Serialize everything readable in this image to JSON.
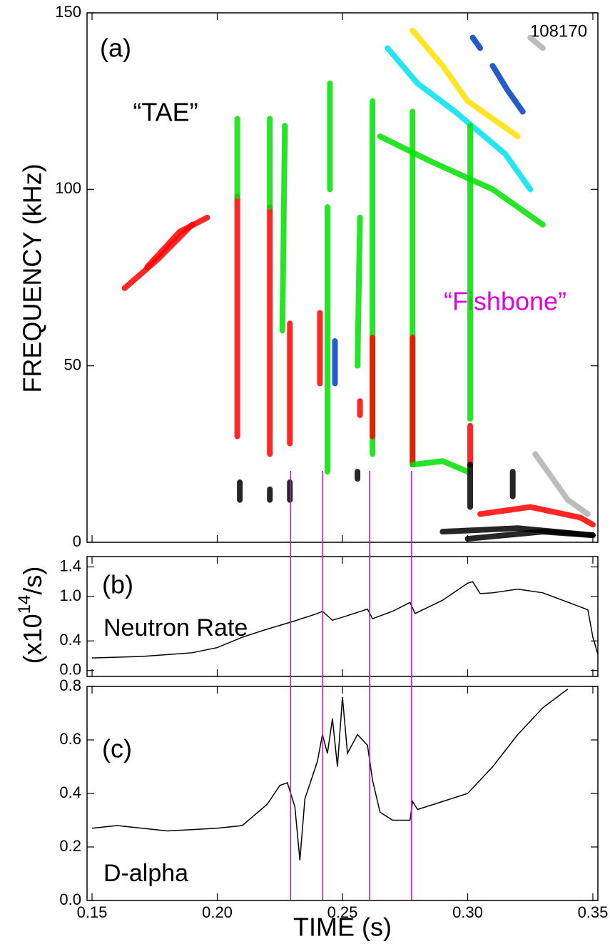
{
  "chart_data": [
    {
      "type": "contour",
      "panel_label": "(a)",
      "shot": "108170",
      "ylabel": "FREQUENCY (kHz)",
      "annotations": [
        {
          "text": "“TAE”",
          "color": "#000000"
        },
        {
          "text": "“Fishbone”",
          "color": "#e000e0"
        }
      ],
      "xlim": [
        0.148,
        0.352
      ],
      "ylim": [
        0,
        150
      ],
      "yticks": [
        0,
        50,
        100,
        150
      ],
      "vlines": {
        "color": "#e000e0",
        "x": [
          0.2293,
          0.242,
          0.2608,
          0.2776
        ]
      },
      "contours": [
        {
          "color": "#ff0000",
          "t": [
            0.163,
            0.176,
            0.19
          ],
          "f": [
            72,
            80,
            90
          ]
        },
        {
          "color": "#ff0000",
          "t": [
            0.172,
            0.185,
            0.196
          ],
          "f": [
            78,
            88,
            92
          ]
        },
        {
          "color": "#ff0000",
          "t": [
            0.208,
            0.208
          ],
          "f": [
            30,
            98
          ]
        },
        {
          "color": "#00e000",
          "t": [
            0.208,
            0.208
          ],
          "f": [
            98,
            120
          ]
        },
        {
          "color": "#000000",
          "t": [
            0.209,
            0.209
          ],
          "f": [
            12,
            17
          ]
        },
        {
          "color": "#ff0000",
          "t": [
            0.221,
            0.221
          ],
          "f": [
            25,
            95
          ]
        },
        {
          "color": "#00e000",
          "t": [
            0.221,
            0.221
          ],
          "f": [
            95,
            120
          ]
        },
        {
          "color": "#000000",
          "t": [
            0.221,
            0.221
          ],
          "f": [
            12,
            15
          ]
        },
        {
          "color": "#ff0000",
          "t": [
            0.229,
            0.229
          ],
          "f": [
            28,
            62
          ]
        },
        {
          "color": "#00e000",
          "t": [
            0.226,
            0.227
          ],
          "f": [
            60,
            118
          ]
        },
        {
          "color": "#000000",
          "t": [
            0.229,
            0.229
          ],
          "f": [
            12,
            17
          ]
        },
        {
          "color": "#ff0000",
          "t": [
            0.241,
            0.241
          ],
          "f": [
            45,
            65
          ]
        },
        {
          "color": "#00e000",
          "t": [
            0.244,
            0.244
          ],
          "f": [
            20,
            95
          ]
        },
        {
          "color": "#00e000",
          "t": [
            0.245,
            0.245
          ],
          "f": [
            100,
            130
          ]
        },
        {
          "color": "#0040c0",
          "t": [
            0.247,
            0.247
          ],
          "f": [
            45,
            57
          ]
        },
        {
          "color": "#00e000",
          "t": [
            0.256,
            0.257
          ],
          "f": [
            50,
            92
          ]
        },
        {
          "color": "#ff0000",
          "t": [
            0.257,
            0.257
          ],
          "f": [
            36,
            40
          ]
        },
        {
          "color": "#000000",
          "t": [
            0.256,
            0.256
          ],
          "f": [
            18,
            20
          ]
        },
        {
          "color": "#00e000",
          "t": [
            0.262,
            0.262
          ],
          "f": [
            25,
            125
          ]
        },
        {
          "color": "#ff0000",
          "t": [
            0.262,
            0.262
          ],
          "f": [
            30,
            58
          ]
        },
        {
          "color": "#00e000",
          "t": [
            0.278,
            0.278
          ],
          "f": [
            22,
            122
          ]
        },
        {
          "color": "#ff0000",
          "t": [
            0.278,
            0.278
          ],
          "f": [
            22,
            58
          ]
        },
        {
          "color": "#00e000",
          "t": [
            0.278,
            0.29,
            0.3
          ],
          "f": [
            22,
            23,
            20
          ]
        },
        {
          "color": "#00e000",
          "t": [
            0.265,
            0.285,
            0.31,
            0.33
          ],
          "f": [
            115,
            108,
            100,
            90
          ]
        },
        {
          "color": "#00e0f0",
          "t": [
            0.268,
            0.28,
            0.295,
            0.315,
            0.325
          ],
          "f": [
            140,
            130,
            122,
            110,
            100
          ]
        },
        {
          "color": "#ffe000",
          "t": [
            0.278,
            0.29,
            0.3,
            0.31,
            0.32
          ],
          "f": [
            145,
            135,
            125,
            120,
            115
          ]
        },
        {
          "color": "#0040c0",
          "t": [
            0.302,
            0.305
          ],
          "f": [
            143,
            140
          ]
        },
        {
          "color": "#0040c0",
          "t": [
            0.31,
            0.316,
            0.322
          ],
          "f": [
            135,
            128,
            122
          ]
        },
        {
          "color": "#b0b0b0",
          "t": [
            0.325,
            0.33
          ],
          "f": [
            143,
            140
          ]
        },
        {
          "color": "#00e000",
          "t": [
            0.301,
            0.301
          ],
          "f": [
            35,
            118
          ]
        },
        {
          "color": "#ff0000",
          "t": [
            0.301,
            0.301
          ],
          "f": [
            22,
            33
          ]
        },
        {
          "color": "#000000",
          "t": [
            0.301,
            0.301
          ],
          "f": [
            10,
            22
          ]
        },
        {
          "color": "#000000",
          "t": [
            0.29,
            0.32,
            0.35
          ],
          "f": [
            3,
            4,
            2
          ]
        },
        {
          "color": "#000000",
          "t": [
            0.3,
            0.33,
            0.35
          ],
          "f": [
            1,
            3,
            2
          ]
        },
        {
          "color": "#ff0000",
          "t": [
            0.305,
            0.325,
            0.345,
            0.35
          ],
          "f": [
            8,
            10,
            7,
            5
          ]
        },
        {
          "color": "#000000",
          "t": [
            0.318,
            0.318
          ],
          "f": [
            13,
            20
          ]
        },
        {
          "color": "#b0b0b0",
          "t": [
            0.327,
            0.34,
            0.348
          ],
          "f": [
            25,
            12,
            8
          ]
        }
      ]
    },
    {
      "type": "line",
      "panel_label": "(b)",
      "name": "Neutron Rate",
      "ylabel": [
        "(x10",
        "14",
        "/s)"
      ],
      "color": "#000000",
      "xlim": [
        0.148,
        0.352
      ],
      "ylim": [
        -0.08,
        1.54
      ],
      "yticks": [
        {
          "value": 0,
          "label": "0.0"
        },
        0.4,
        {
          "value": 1,
          "label": "1.0"
        },
        1.4
      ],
      "x": [
        0.15,
        0.17,
        0.19,
        0.2,
        0.21,
        0.22,
        0.23,
        0.24,
        0.242,
        0.246,
        0.25,
        0.26,
        0.262,
        0.27,
        0.277,
        0.279,
        0.29,
        0.3,
        0.302,
        0.305,
        0.31,
        0.32,
        0.33,
        0.345,
        0.348,
        0.35,
        0.352
      ],
      "values": [
        0.17,
        0.19,
        0.24,
        0.31,
        0.45,
        0.56,
        0.66,
        0.77,
        0.8,
        0.68,
        0.72,
        0.83,
        0.7,
        0.8,
        0.92,
        0.77,
        0.95,
        1.18,
        1.2,
        1.04,
        1.05,
        1.1,
        1.05,
        0.86,
        0.82,
        0.45,
        0.22
      ]
    },
    {
      "type": "line",
      "panel_label": "(c)",
      "name": "D-alpha",
      "xlabel": "TIME (s)",
      "color": "#000000",
      "xlim": [
        0.148,
        0.352
      ],
      "ylim": [
        0,
        0.8
      ],
      "xticks": [
        0.15,
        {
          "value": 0.2,
          "label": "0.20"
        },
        0.25,
        {
          "value": 0.3,
          "label": "0.30"
        },
        0.35
      ],
      "yticks": [
        {
          "value": 0,
          "label": "0.0"
        },
        0.2,
        0.4,
        0.6,
        0.8
      ],
      "x": [
        0.15,
        0.16,
        0.18,
        0.2,
        0.21,
        0.22,
        0.225,
        0.228,
        0.231,
        0.233,
        0.235,
        0.24,
        0.242,
        0.244,
        0.246,
        0.248,
        0.25,
        0.252,
        0.256,
        0.26,
        0.262,
        0.265,
        0.27,
        0.277,
        0.278,
        0.28,
        0.29,
        0.3,
        0.31,
        0.32,
        0.33,
        0.34
      ],
      "values": [
        0.27,
        0.28,
        0.26,
        0.27,
        0.28,
        0.36,
        0.43,
        0.44,
        0.35,
        0.15,
        0.38,
        0.52,
        0.62,
        0.55,
        0.68,
        0.5,
        0.76,
        0.55,
        0.62,
        0.58,
        0.45,
        0.33,
        0.3,
        0.3,
        0.37,
        0.34,
        0.37,
        0.4,
        0.5,
        0.62,
        0.72,
        0.79
      ]
    }
  ]
}
